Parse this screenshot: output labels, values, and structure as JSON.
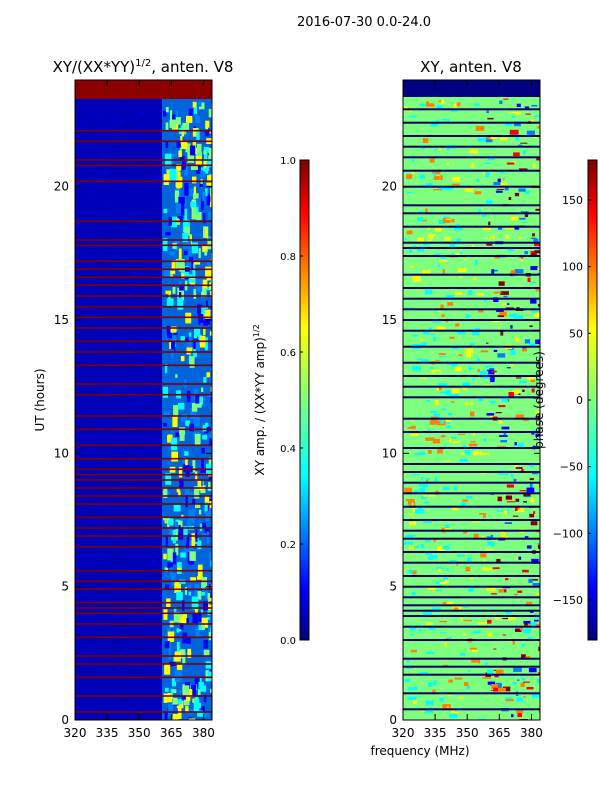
{
  "suptitle": "2016-07-30 0.0-24.0",
  "shared_xlabel": "frequency (MHz)",
  "colors": {
    "jet": [
      "#00007f",
      "#0000ff",
      "#007fff",
      "#00ffff",
      "#7fff7f",
      "#ffff00",
      "#ff7f00",
      "#ff0000",
      "#7f0000"
    ],
    "flag_line": "#7f0000",
    "gap_line": "#000066",
    "top_band": "#8b0000"
  },
  "chart_data": [
    {
      "type": "heatmap",
      "title_main": "XY/(XX*YY)",
      "title_sup": "1/2",
      "title_tail": ", anten. V8",
      "xlabel": "",
      "ylabel": "UT (hours)",
      "xlim": [
        320,
        384
      ],
      "ylim": [
        0,
        24
      ],
      "xticks": [
        320,
        335,
        350,
        365,
        380
      ],
      "yticks": [
        0,
        5,
        10,
        15,
        20
      ],
      "band_start_mhz": 361,
      "top_flag_from_hour": 23.3,
      "flagged_hours": [
        0.3,
        0.9,
        1.6,
        2.1,
        2.4,
        3.1,
        3.6,
        4.0,
        4.2,
        4.4,
        4.9,
        5.2,
        5.6,
        6.5,
        6.9,
        7.2,
        7.6,
        8.1,
        8.4,
        8.7,
        9.0,
        9.2,
        9.4,
        9.8,
        10.3,
        10.9,
        11.4,
        12.2,
        12.6,
        13.3,
        13.8,
        14.2,
        14.7,
        15.1,
        15.5,
        15.9,
        16.3,
        16.6,
        16.9,
        17.2,
        17.8,
        18.0,
        18.7,
        20.2,
        20.8,
        21.0,
        21.7,
        22.1
      ],
      "colorbar": {
        "label": "XY amp. / (XX*YY amp)",
        "label_sup": "1/2",
        "ticks": [
          "0.0",
          "0.2",
          "0.4",
          "0.6",
          "0.8",
          "1.0"
        ],
        "range": [
          0,
          1
        ]
      }
    },
    {
      "type": "heatmap",
      "title_main": "XY, anten. V8",
      "xlabel": "frequency (MHz)",
      "ylabel": "",
      "xlim": [
        320,
        384
      ],
      "ylim": [
        0,
        24
      ],
      "xticks": [
        320,
        335,
        350,
        365,
        380
      ],
      "yticks": [
        0,
        5,
        10,
        15,
        20
      ],
      "top_flag_from_hour": 23.3,
      "gap_hours": [
        0.4,
        1.0,
        1.7,
        2.0,
        2.3,
        3.0,
        3.5,
        3.9,
        4.1,
        4.3,
        4.6,
        5.0,
        5.4,
        5.9,
        6.3,
        6.8,
        7.1,
        7.5,
        8.0,
        8.5,
        8.9,
        9.3,
        9.6,
        10.2,
        10.8,
        11.3,
        12.1,
        12.5,
        12.9,
        13.4,
        14.0,
        14.6,
        15.0,
        15.4,
        15.8,
        16.2,
        16.7,
        17.4,
        17.7,
        17.9,
        18.5,
        19.0,
        19.3,
        20.0,
        20.6,
        21.1,
        21.5,
        21.9,
        22.4,
        22.9
      ],
      "colorbar": {
        "label": "phase (degrees)",
        "ticks": [
          "150",
          "100",
          "50",
          "0",
          "−50",
          "−100",
          "−150"
        ],
        "tick_values": [
          150,
          100,
          50,
          0,
          -50,
          -100,
          -150
        ],
        "range": [
          -180,
          180
        ]
      }
    }
  ]
}
